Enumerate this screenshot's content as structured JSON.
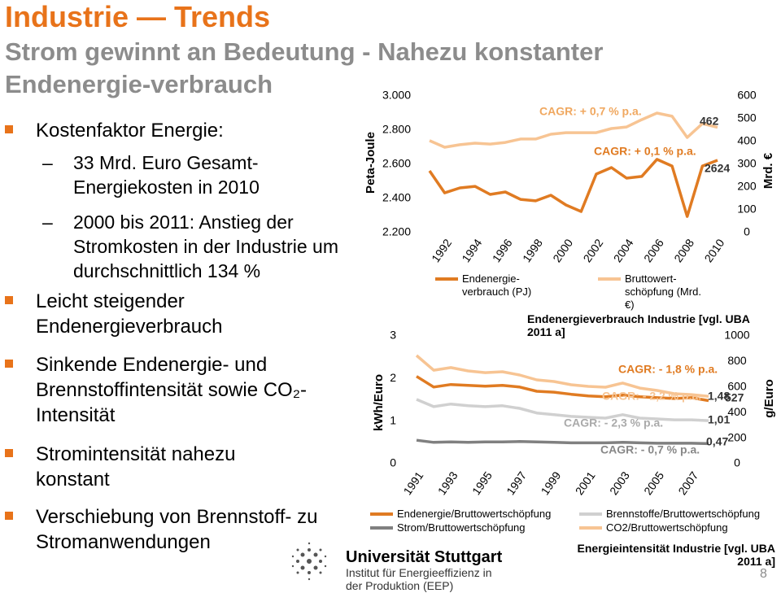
{
  "title": "Industrie — Trends",
  "subtitle": "Strom gewinnt an Bedeutung - Nahezu konstanter Endenergie-verbrauch",
  "bullets": [
    {
      "text": "Kostenfaktor Energie:",
      "sub": [
        "33 Mrd. Euro Gesamt-Energiekosten in 2010",
        "2000 bis 2011: Anstieg der Stromkosten in der Industrie um durchschnittlich 134 %"
      ]
    },
    {
      "text": "Leicht steigender Endenergieverbrauch"
    },
    {
      "text": "Sinkende Endenergie- und Brennstoffintensität sowie CO₂-Intensität"
    },
    {
      "text": "Stromintensität nahezu konstant"
    },
    {
      "text": "Verschiebung von Brennstoff- zu Stromanwendungen"
    }
  ],
  "footer": {
    "university": "Universität Stuttgart",
    "institute": "Institut für Energieeffizienz in der Produktion (EEP)",
    "page": "8"
  },
  "chart_data": [
    {
      "type": "line",
      "caption": "Endenergieverbrauch Industrie [vgl. UBA 2011 a]",
      "ylabel": "Peta-Joule",
      "y2label": "Mrd. €",
      "x": [
        1991,
        1992,
        1993,
        1994,
        1995,
        1996,
        1997,
        1998,
        1999,
        2000,
        2001,
        2002,
        2003,
        2004,
        2005,
        2006,
        2007,
        2008,
        2009,
        2010
      ],
      "xlim": [
        1991,
        2010
      ],
      "xticks": [
        1992,
        1994,
        1996,
        1998,
        2000,
        2002,
        2004,
        2006,
        2008,
        2010
      ],
      "ylim": [
        2200,
        3000
      ],
      "yticks": [
        {
          "value": 2200,
          "label": "2.200"
        },
        {
          "value": 2400,
          "label": "2.400"
        },
        {
          "value": 2600,
          "label": "2.600"
        },
        {
          "value": 2800,
          "label": "2.800"
        },
        {
          "value": 3000,
          "label": "3.000"
        }
      ],
      "y2lim": [
        0,
        600
      ],
      "y2ticks": [
        0,
        100,
        200,
        300,
        400,
        500,
        600
      ],
      "series": [
        {
          "name": "Endenergie-verbrauch (PJ)",
          "color": "#e07b22",
          "values": [
            2562,
            2433,
            2462,
            2471,
            2424,
            2438,
            2395,
            2386,
            2419,
            2362,
            2324,
            2543,
            2581,
            2519,
            2529,
            2629,
            2590,
            2295,
            2590,
            2624
          ]
        },
        {
          "name": "Bruttowert-schöpfung (Mrd. €)",
          "color": "#f7c493",
          "axis": "y2",
          "values": [
            404,
            375,
            386,
            393,
            389,
            396,
            411,
            411,
            432,
            439,
            439,
            439,
            457,
            464,
            496,
            525,
            511,
            418,
            479,
            462
          ]
        }
      ],
      "annotations": [
        "CAGR: + 0,7 % p.a.",
        "462",
        "CAGR: + 0,1 % p.a.",
        "2624"
      ]
    },
    {
      "type": "line",
      "caption": "Energieintensität Industrie [vgl. UBA 2011 a]",
      "ylabel": "kWh/Euro",
      "y2label": "g/Euro",
      "x": [
        1991,
        1992,
        1993,
        1994,
        1995,
        1996,
        1997,
        1998,
        1999,
        2000,
        2001,
        2002,
        2003,
        2004,
        2005,
        2006,
        2007,
        2008
      ],
      "xlim": [
        1991,
        2008
      ],
      "xticks": [
        1991,
        1993,
        1995,
        1997,
        1999,
        2001,
        2003,
        2005,
        2007
      ],
      "ylim": [
        0,
        3
      ],
      "yticks": [
        0,
        1,
        2,
        3
      ],
      "y2lim": [
        0,
        1000
      ],
      "y2ticks": [
        0,
        200,
        400,
        600,
        800,
        1000
      ],
      "series": [
        {
          "name": "Endenergie/Bruttowertschöpfung",
          "color": "#e07b22",
          "values": [
            2.05,
            1.8,
            1.86,
            1.84,
            1.82,
            1.84,
            1.8,
            1.7,
            1.68,
            1.63,
            1.59,
            1.57,
            1.61,
            1.57,
            1.55,
            1.53,
            1.55,
            1.48
          ]
        },
        {
          "name": "Strom/Bruttowertschöpfung",
          "color": "#808080",
          "values": [
            0.55,
            0.5,
            0.51,
            0.5,
            0.51,
            0.51,
            0.52,
            0.51,
            0.5,
            0.49,
            0.49,
            0.49,
            0.5,
            0.49,
            0.48,
            0.48,
            0.48,
            0.47
          ]
        },
        {
          "name": "Brennstoffe/Bruttowertschöpfung",
          "color": "#d0d0d0",
          "values": [
            1.51,
            1.34,
            1.4,
            1.36,
            1.34,
            1.36,
            1.3,
            1.19,
            1.15,
            1.11,
            1.09,
            1.07,
            1.15,
            1.07,
            1.05,
            1.03,
            1.03,
            1.01
          ]
        },
        {
          "name": "CO2/Bruttowertschöpfung",
          "color": "#f7c493",
          "axis": "y2",
          "values": [
            847,
            732,
            752,
            726,
            713,
            720,
            694,
            656,
            643,
            618,
            605,
            599,
            631,
            592,
            573,
            548,
            541,
            527
          ]
        }
      ],
      "annotations": [
        "CAGR: - 1,8 % p.a.",
        "CAGR: - 2,2 % p.a.",
        "CAGR: - 2,3 % p.a.",
        "CAGR: - 0,7 % p.a.",
        "1,48",
        "527",
        "1,01",
        "0,47"
      ]
    }
  ]
}
